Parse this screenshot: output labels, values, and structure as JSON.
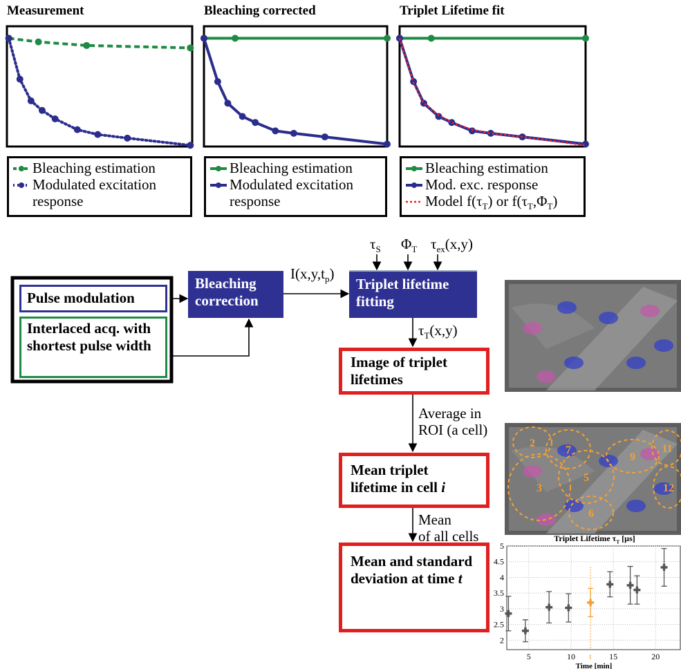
{
  "chart_data": [
    {
      "type": "line",
      "title": "Measurement",
      "xlim": [
        0,
        1
      ],
      "ylim": [
        0,
        1
      ],
      "series": [
        {
          "name": "Bleaching estimation",
          "color": "#1e8a44",
          "style": "dashed",
          "x": [
            0.01,
            0.17,
            0.43,
            0.99
          ],
          "values": [
            0.9,
            0.87,
            0.84,
            0.82
          ]
        },
        {
          "name": "Modulated excitation response",
          "color": "#2b2d8c",
          "style": "dotted",
          "x": [
            0.01,
            0.07,
            0.13,
            0.19,
            0.26,
            0.38,
            0.49,
            0.65,
            0.99
          ],
          "values": [
            0.9,
            0.56,
            0.38,
            0.3,
            0.23,
            0.14,
            0.1,
            0.07,
            0.01
          ]
        }
      ]
    },
    {
      "type": "line",
      "title": "Bleaching corrected",
      "xlim": [
        0,
        1
      ],
      "ylim": [
        0,
        1
      ],
      "series": [
        {
          "name": "Bleaching estimation",
          "color": "#1e8a44",
          "style": "solid",
          "x": [
            0,
            0.17,
            1
          ],
          "values": [
            0.9,
            0.9,
            0.9
          ]
        },
        {
          "name": "Modulated excitation response",
          "color": "#2b2d8c",
          "style": "solid",
          "x": [
            0,
            0.075,
            0.13,
            0.21,
            0.28,
            0.39,
            0.49,
            0.66,
            1
          ],
          "values": [
            0.9,
            0.54,
            0.36,
            0.25,
            0.2,
            0.13,
            0.11,
            0.08,
            0.02
          ]
        }
      ]
    },
    {
      "type": "line",
      "title": "Triplet Lifetime fit",
      "xlim": [
        0,
        1
      ],
      "ylim": [
        0,
        1
      ],
      "series": [
        {
          "name": "Bleaching estimation",
          "color": "#1e8a44",
          "style": "solid",
          "x": [
            0,
            0.17,
            1
          ],
          "values": [
            0.9,
            0.9,
            0.9
          ]
        },
        {
          "name": "Mod. exc. response",
          "color": "#2b2d8c",
          "style": "solid",
          "x": [
            0,
            0.075,
            0.13,
            0.21,
            0.28,
            0.39,
            0.49,
            0.66,
            1
          ],
          "values": [
            0.9,
            0.54,
            0.36,
            0.25,
            0.2,
            0.13,
            0.11,
            0.08,
            0.02
          ]
        },
        {
          "name": [
            {
              "t": "Model f(τ"
            },
            {
              "sub": "T"
            },
            {
              "t": ") or f(τ"
            },
            {
              "sub": "T"
            },
            {
              "t": ",Φ"
            },
            {
              "sub": "T"
            },
            {
              "t": ")"
            }
          ],
          "color": "#e8202a",
          "style": "dotted-line",
          "x": [
            0,
            0.075,
            0.13,
            0.21,
            0.28,
            0.39,
            0.49,
            0.66,
            1
          ],
          "values": [
            0.9,
            0.53,
            0.36,
            0.26,
            0.2,
            0.14,
            0.11,
            0.08,
            0.01
          ]
        }
      ]
    },
    {
      "type": "scatter",
      "title": [
        {
          "t": "Triplet Lifetime τ"
        },
        {
          "sub": "T"
        },
        {
          "t": " [µs]"
        }
      ],
      "xlabel": "Time [min]",
      "x": [
        2.6,
        4.6,
        7.4,
        9.7,
        12.3,
        14.6,
        17.0,
        17.8,
        21.0
      ],
      "values": [
        2.85,
        2.3,
        3.05,
        3.03,
        3.2,
        3.78,
        3.75,
        3.6,
        4.32
      ],
      "errors": [
        0.55,
        0.35,
        0.5,
        0.45,
        0.45,
        0.4,
        0.6,
        0.45,
        0.6
      ],
      "point_colors": [
        "#555555",
        "#555555",
        "#555555",
        "#555555",
        "#f5a030",
        "#555555",
        "#555555",
        "#555555",
        "#555555"
      ],
      "xlim": [
        2.4,
        23
      ],
      "ylim": [
        1.7,
        5
      ],
      "xticks": [
        5,
        10,
        {
          "value": 12.3,
          "label": "t"
        },
        15,
        20
      ],
      "yticks": [
        2,
        2.5,
        3,
        3.5,
        4,
        4.5,
        5
      ],
      "grid": true,
      "highlight_color": "#f5a030"
    }
  ],
  "diagram": {
    "nodes": [
      "Pulse modulation",
      "Interlaced acq. with shortest pulse width",
      "Bleaching correction",
      "Triplet lifetime fitting",
      "Image of triplet lifetimes",
      [
        {
          "t": "Mean triplet lifetime in cell "
        },
        {
          "i": "i"
        }
      ],
      [
        {
          "t": "Mean and standard deviation at time "
        },
        {
          "i": "t"
        }
      ]
    ],
    "edge_labels": [
      [
        {
          "t": "I(x,y,t"
        },
        {
          "sub": "p"
        },
        {
          "t": ")"
        }
      ],
      [
        {
          "t": "τ"
        },
        {
          "sub": "S"
        }
      ],
      [
        {
          "t": "Φ"
        },
        {
          "sub": "T"
        }
      ],
      [
        {
          "t": "τ"
        },
        {
          "sub": "ex"
        },
        {
          "t": "(x,y)"
        }
      ],
      [
        {
          "t": "τ"
        },
        {
          "sub": "T"
        },
        {
          "t": "(x,y)"
        }
      ],
      [
        "Average in",
        "ROI (a cell)"
      ],
      [
        "Mean",
        "of all cells"
      ]
    ],
    "roi_labels": [
      "2",
      "7",
      "11",
      "5",
      "9",
      "3",
      "6",
      "12"
    ]
  }
}
